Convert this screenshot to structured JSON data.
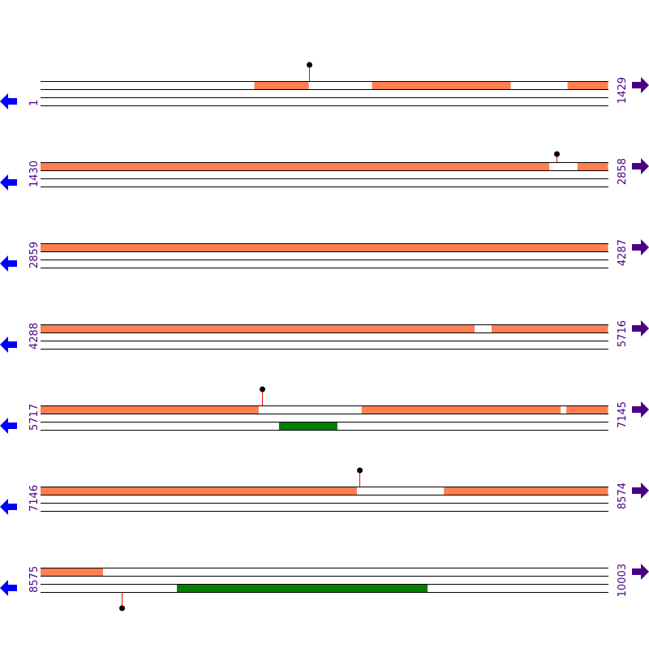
{
  "colors": {
    "feature": "#ff7f50",
    "feature2": "#008000",
    "stem": "#ff0000",
    "line": "#000000",
    "left_arrow": "#0000ff",
    "right_arrow": "#4b0082",
    "label": "#4b0082"
  },
  "icons": {
    "left": "arrow-left-icon",
    "right": "arrow-right-icon"
  },
  "rows": [
    {
      "start": "1",
      "end": "1429",
      "s": 1,
      "e": 1429,
      "top": [
        [
          539,
          676
        ],
        [
          835,
          1184
        ],
        [
          1327,
          1429
        ]
      ],
      "bottom": [],
      "marks": [
        {
          "pos": 676,
          "dir": "up"
        }
      ]
    },
    {
      "start": "1430",
      "end": "2858",
      "s": 1430,
      "e": 2858,
      "top": [
        [
          1430,
          2710
        ],
        [
          2781,
          2858
        ]
      ],
      "bottom": [],
      "marks": [
        {
          "pos": 2728,
          "dir": "up-short"
        }
      ]
    },
    {
      "start": "2859",
      "end": "4287",
      "s": 2859,
      "e": 4287,
      "top": [
        [
          2859,
          4287
        ]
      ],
      "bottom": [],
      "marks": []
    },
    {
      "start": "4288",
      "end": "5716",
      "s": 4288,
      "e": 5716,
      "top": [
        [
          4288,
          5380
        ],
        [
          5423,
          5716
        ]
      ],
      "bottom": [],
      "marks": []
    },
    {
      "start": "5717",
      "end": "7145",
      "s": 5717,
      "e": 7145,
      "top": [
        [
          5717,
          6266
        ],
        [
          6525,
          7026
        ],
        [
          7040,
          7145
        ]
      ],
      "bottom": [
        [
          6317,
          6464
        ]
      ],
      "marks": [
        {
          "pos": 6274,
          "dir": "up"
        }
      ]
    },
    {
      "start": "7146",
      "end": "8574",
      "s": 7146,
      "e": 8574,
      "top": [
        [
          7146,
          7942
        ],
        [
          8161,
          8574
        ]
      ],
      "bottom": [],
      "marks": [
        {
          "pos": 7948,
          "dir": "up"
        }
      ]
    },
    {
      "start": "8575",
      "end": "10003",
      "s": 8575,
      "e": 10003,
      "top": [
        [
          8575,
          8732
        ]
      ],
      "bottom": [
        [
          8918,
          9549
        ]
      ],
      "marks": [
        {
          "pos": 8779,
          "dir": "down"
        }
      ]
    }
  ]
}
